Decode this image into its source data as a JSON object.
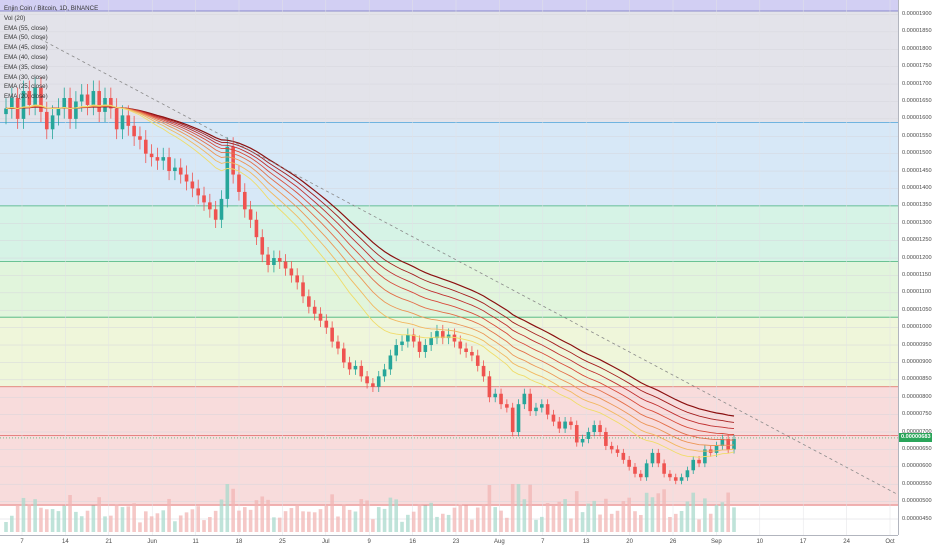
{
  "header": {
    "symbol_title": "Enjin Coin / Bitcoin, 1D, BINANCE"
  },
  "legend": {
    "items": [
      "Vol (20)",
      "EMA (55, close)",
      "EMA (50, close)",
      "EMA (45, close)",
      "EMA (40, close)",
      "EMA (35, close)",
      "EMA (30, close)",
      "EMA (25, close)",
      "EMA (20, close)"
    ]
  },
  "price_axis": {
    "labels": [
      "0.00001900",
      "0.00001850",
      "0.00001800",
      "0.00001750",
      "0.00001700",
      "0.00001650",
      "0.00001600",
      "0.00001550",
      "0.00001500",
      "0.00001450",
      "0.00001400",
      "0.00001350",
      "0.00001300",
      "0.00001250",
      "0.00001200",
      "0.00001150",
      "0.00001100",
      "0.00001050",
      "0.00001000",
      "0.00000950",
      "0.00000900",
      "0.00000850",
      "0.00000800",
      "0.00000750",
      "0.00000700",
      "0.00000650",
      "0.00000600",
      "0.00000550",
      "0.00000500",
      "0.00000450"
    ],
    "last_price": "0.00000683",
    "last_price_color": "#2aa55a"
  },
  "time_axis": {
    "labels": [
      "7",
      "14",
      "21",
      "Jun",
      "11",
      "18",
      "25",
      "Jul",
      "9",
      "16",
      "23",
      "Aug",
      "7",
      "13",
      "20",
      "26",
      "Sep",
      "10",
      "17",
      "24",
      "Oct"
    ]
  },
  "colors": {
    "up": "#26a69a",
    "down": "#ef5350",
    "zone_top": "#e3e3ea",
    "zone_blue": "#d7e8f7",
    "zone_teal": "#d6f3e6",
    "zone_green": "#e1f5dc",
    "zone_yellow": "#eff6da",
    "zone_red": "#f8dcdc"
  },
  "chart_data": {
    "type": "candlestick",
    "symbol": "Enjin Coin / Bitcoin",
    "interval": "1D",
    "exchange": "BINANCE",
    "ylim": [
      4.5e-06,
      1.91e-05
    ],
    "horizontal_levels": [
      1.91e-05,
      1.59e-05,
      1.35e-05,
      1.19e-05,
      1.03e-05,
      8.3e-06,
      6.9e-06,
      4.9e-06
    ],
    "trendline": {
      "from": [
        "May 1",
        1.83e-05
      ],
      "to": [
        "Oct 1",
        5.2e-06
      ]
    },
    "close_prices": [
      1.63e-05,
      1.66e-05,
      1.6e-05,
      1.68e-05,
      1.64e-05,
      1.69e-05,
      1.62e-05,
      1.57e-05,
      1.61e-05,
      1.63e-05,
      1.66e-05,
      1.6e-05,
      1.65e-05,
      1.67e-05,
      1.64e-05,
      1.68e-05,
      1.62e-05,
      1.66e-05,
      1.63e-05,
      1.57e-05,
      1.61e-05,
      1.58e-05,
      1.55e-05,
      1.54e-05,
      1.5e-05,
      1.49e-05,
      1.48e-05,
      1.49e-05,
      1.45e-05,
      1.46e-05,
      1.44e-05,
      1.42e-05,
      1.4e-05,
      1.38e-05,
      1.36e-05,
      1.34e-05,
      1.31e-05,
      1.37e-05,
      1.52e-05,
      1.44e-05,
      1.39e-05,
      1.34e-05,
      1.31e-05,
      1.26e-05,
      1.21e-05,
      1.18e-05,
      1.2e-05,
      1.19e-05,
      1.17e-05,
      1.15e-05,
      1.13e-05,
      1.09e-05,
      1.06e-05,
      1.04e-05,
      1.02e-05,
      1e-05,
      9.6e-06,
      9.4e-06,
      9e-06,
      8.8e-06,
      8.9e-06,
      8.6e-06,
      8.4e-06,
      8.3e-06,
      8.6e-06,
      8.8e-06,
      9.2e-06,
      9.5e-06,
      9.6e-06,
      9.8e-06,
      9.6e-06,
      9.3e-06,
      9.5e-06,
      9.7e-06,
      9.9e-06,
      9.7e-06,
      9.8e-06,
      9.6e-06,
      9.4e-06,
      9.3e-06,
      9.2e-06,
      8.9e-06,
      8.6e-06,
      8e-06,
      8.1e-06,
      7.8e-06,
      7.7e-06,
      7e-06,
      7.8e-06,
      8.1e-06,
      7.6e-06,
      7.7e-06,
      7.8e-06,
      7.5e-06,
      7.3e-06,
      7.1e-06,
      7.3e-06,
      7.2e-06,
      6.7e-06,
      6.8e-06,
      7e-06,
      7.2e-06,
      7e-06,
      6.6e-06,
      6.5e-06,
      6.4e-06,
      6.2e-06,
      6e-06,
      5.8e-06,
      5.7e-06,
      6.1e-06,
      6.4e-06,
      6.1e-06,
      5.8e-06,
      5.7e-06,
      5.6e-06,
      5.7e-06,
      5.9e-06,
      6.2e-06,
      6.1e-06,
      6.5e-06,
      6.4e-06,
      6.6e-06,
      6.8e-06,
      6.5e-06,
      6.8e-06
    ],
    "ema_periods": [
      55,
      50,
      45,
      40,
      35,
      30,
      25,
      20
    ]
  }
}
